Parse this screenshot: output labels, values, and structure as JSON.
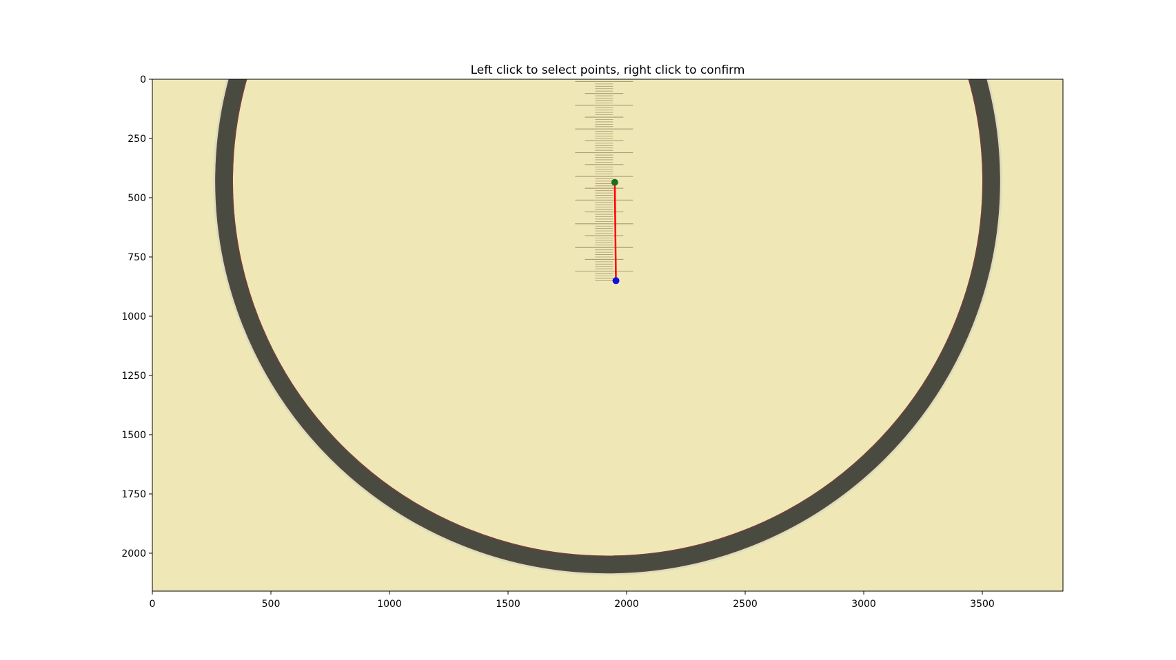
{
  "figure": {
    "title": "Left click to select points, right click to confirm"
  },
  "chart_data": {
    "type": "image",
    "title": "Left click to select points, right click to confirm",
    "xlabel": "",
    "ylabel": "",
    "xlim": [
      0,
      3840
    ],
    "ylim": [
      2160,
      0
    ],
    "x_ticks": [
      0,
      500,
      1000,
      1500,
      2000,
      2500,
      3000,
      3500
    ],
    "y_ticks": [
      0,
      250,
      500,
      750,
      1000,
      1250,
      1500,
      1750,
      2000
    ],
    "image": {
      "background_color": "#efe8b6",
      "ring": {
        "center_x": 1920,
        "center_y": 430,
        "outer_radius": 1655,
        "inner_radius": 1580,
        "color": "#4a4b40",
        "edge_color": "#8a3a38"
      },
      "scale_ruler": {
        "x": 1905,
        "y_start": 10,
        "y_end": 850,
        "tick_spacing": 10,
        "color": "#9a8a6a"
      }
    },
    "selected_points": [
      {
        "name": "start",
        "x": 1950,
        "y": 435,
        "color": "#1e6e1e"
      },
      {
        "name": "end",
        "x": 1955,
        "y": 850,
        "color": "#1010e0"
      }
    ],
    "measurement_line": {
      "color": "#ff0000"
    }
  }
}
